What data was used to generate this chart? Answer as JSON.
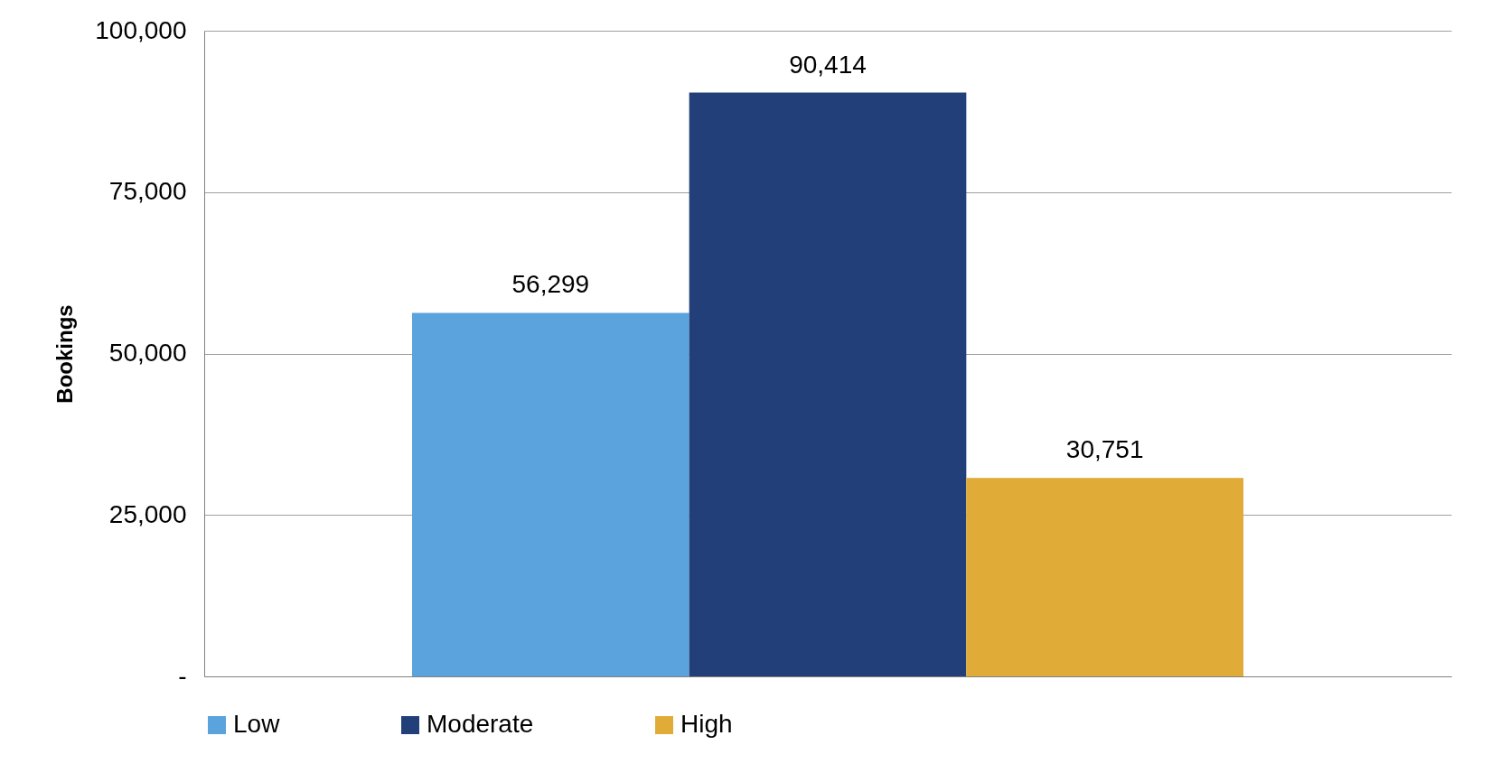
{
  "chart_data": {
    "type": "bar",
    "ylabel": "Bookings",
    "categories": [
      null
    ],
    "series": [
      {
        "name": "Low",
        "color": "#5ba3dc",
        "values": [
          56299
        ],
        "value_labels": [
          "56,299"
        ]
      },
      {
        "name": "Moderate",
        "color": "#223f7a",
        "values": [
          90414
        ],
        "value_labels": [
          "90,414"
        ]
      },
      {
        "name": "High",
        "color": "#e1ab38",
        "values": [
          30751
        ],
        "value_labels": [
          "30,751"
        ]
      }
    ],
    "ylim": [
      0,
      100000
    ],
    "yticks": [
      {
        "value": 0,
        "label": "-"
      },
      {
        "value": 25000,
        "label": "25,000"
      },
      {
        "value": 50000,
        "label": "50,000"
      },
      {
        "value": 75000,
        "label": "75,000"
      },
      {
        "value": 100000,
        "label": "100,000"
      }
    ],
    "grid": "y",
    "legend": "bottom",
    "tick_labels": "y"
  }
}
